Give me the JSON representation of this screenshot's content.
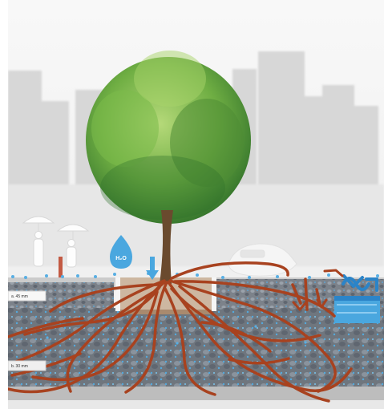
{
  "diagram": {
    "water_drop_label": "H₂O",
    "left_tag_upper": "a. 45 mm",
    "left_tag_lower": "b. 30 mm",
    "colors": {
      "sky": "#f2f2f2",
      "skyline": "#d7d7d7",
      "trunk": "#6a4a2e",
      "roots": "#a8421f",
      "water": "#4aa7df",
      "water_dark": "#2b84c8",
      "soil": "#b9b9b9",
      "gravel": "#7a8188",
      "planter": "#cdb7a1"
    },
    "icons": [
      "person-with-umbrella-icon",
      "person-with-umbrella-icon",
      "water-drop-icon",
      "down-arrow-icon",
      "storm-drain-icon",
      "car-icon"
    ]
  }
}
